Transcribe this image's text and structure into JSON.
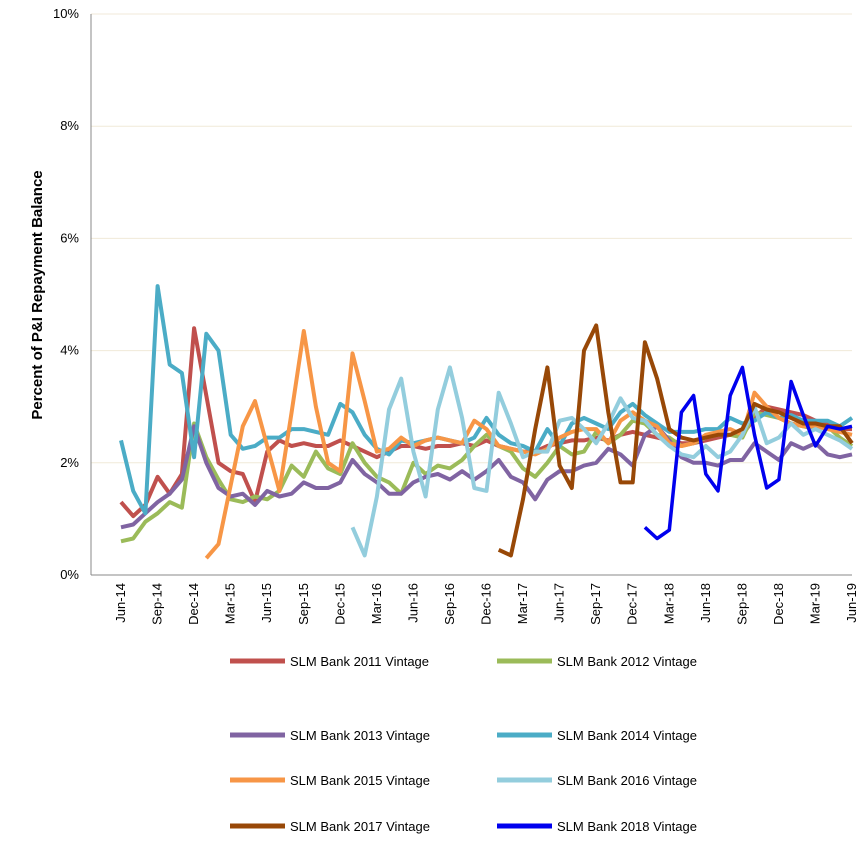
{
  "chart_data": {
    "type": "line",
    "y_label": "Percent of P&I Repayment  Balance",
    "categories": [
      "Jun-14",
      null,
      null,
      "Sep-14",
      null,
      null,
      "Dec-14",
      null,
      null,
      "Mar-15",
      null,
      null,
      "Jun-15",
      null,
      null,
      "Sep-15",
      null,
      null,
      "Dec-15",
      null,
      null,
      "Mar-16",
      null,
      null,
      "Jun-16",
      null,
      null,
      "Sep-16",
      null,
      null,
      "Dec-16",
      null,
      null,
      "Mar-17",
      null,
      null,
      "Jun-17",
      null,
      null,
      "Sep-17",
      null,
      null,
      "Dec-17",
      null,
      null,
      "Mar-18",
      null,
      null,
      "Jun-18",
      null,
      null,
      "Sep-18",
      null,
      null,
      "Dec-18",
      null,
      null,
      "Mar-19",
      null,
      null,
      "Jun-19"
    ],
    "ylim": [
      0,
      10
    ],
    "yticks": [
      {
        "value": 0,
        "label": "0%"
      },
      {
        "value": 2,
        "label": "2%"
      },
      {
        "value": 4,
        "label": "4%"
      },
      {
        "value": 6,
        "label": "6%"
      },
      {
        "value": 8,
        "label": "8%"
      },
      {
        "value": 10,
        "label": "10%"
      }
    ],
    "grid": true,
    "series": [
      {
        "name": "SLM Bank 2011 Vintage",
        "color": "#c0504d",
        "values": [
          1.3,
          1.05,
          1.25,
          1.75,
          1.45,
          1.8,
          4.4,
          3.2,
          2.0,
          1.85,
          1.8,
          1.3,
          2.2,
          2.4,
          2.3,
          2.35,
          2.3,
          2.3,
          2.4,
          2.3,
          2.2,
          2.1,
          2.2,
          2.3,
          2.3,
          2.25,
          2.3,
          2.3,
          2.35,
          2.3,
          2.4,
          2.3,
          2.25,
          2.2,
          2.2,
          2.3,
          2.35,
          2.4,
          2.4,
          2.45,
          2.4,
          2.5,
          2.55,
          2.5,
          2.45,
          2.4,
          2.35,
          2.35,
          2.4,
          2.45,
          2.5,
          2.5,
          2.8,
          3.0,
          2.95,
          2.9,
          2.85,
          2.75,
          2.7,
          2.6,
          2.6
        ]
      },
      {
        "name": "SLM Bank 2012 Vintage",
        "color": "#9bbb59",
        "values": [
          0.6,
          0.65,
          0.95,
          1.1,
          1.3,
          1.2,
          2.7,
          2.1,
          1.7,
          1.35,
          1.3,
          1.4,
          1.35,
          1.5,
          1.95,
          1.75,
          2.2,
          1.9,
          1.8,
          2.35,
          2.0,
          1.75,
          1.65,
          1.45,
          2.0,
          1.8,
          1.95,
          1.9,
          2.05,
          2.3,
          2.5,
          2.3,
          2.2,
          1.9,
          1.75,
          2.0,
          2.3,
          2.15,
          2.2,
          2.55,
          2.35,
          2.5,
          2.75,
          2.7,
          2.5,
          2.45,
          2.3,
          2.35,
          2.45,
          2.5,
          2.5,
          2.45,
          2.9,
          2.85,
          2.8,
          2.7,
          2.65,
          2.6,
          2.65,
          2.45,
          2.3
        ]
      },
      {
        "name": "SLM Bank 2013 Vintage",
        "color": "#8064a2",
        "values": [
          0.85,
          0.9,
          1.1,
          1.3,
          1.45,
          1.7,
          2.65,
          2.0,
          1.55,
          1.4,
          1.45,
          1.25,
          1.5,
          1.4,
          1.45,
          1.65,
          1.55,
          1.55,
          1.65,
          2.05,
          1.8,
          1.65,
          1.45,
          1.45,
          1.65,
          1.75,
          1.8,
          1.7,
          1.85,
          1.7,
          1.85,
          2.05,
          1.75,
          1.65,
          1.35,
          1.7,
          1.85,
          1.85,
          1.95,
          2.0,
          2.25,
          2.15,
          1.95,
          2.5,
          2.65,
          2.4,
          2.1,
          2.0,
          2.0,
          1.95,
          2.05,
          2.05,
          2.35,
          2.2,
          2.05,
          2.35,
          2.25,
          2.35,
          2.15,
          2.1,
          2.15
        ]
      },
      {
        "name": "SLM Bank 2014 Vintage",
        "color": "#4bacc6",
        "values": [
          2.4,
          1.5,
          1.1,
          5.15,
          3.75,
          3.6,
          2.1,
          4.3,
          4.0,
          2.5,
          2.25,
          2.3,
          2.45,
          2.45,
          2.6,
          2.6,
          2.55,
          2.5,
          3.05,
          2.9,
          2.5,
          2.25,
          2.15,
          2.4,
          2.35,
          2.4,
          2.45,
          2.4,
          2.35,
          2.45,
          2.8,
          2.5,
          2.35,
          2.3,
          2.2,
          2.6,
          2.3,
          2.7,
          2.8,
          2.7,
          2.6,
          2.9,
          3.05,
          2.85,
          2.7,
          2.55,
          2.55,
          2.55,
          2.6,
          2.6,
          2.8,
          2.7,
          2.75,
          2.9,
          2.8,
          2.85,
          2.75,
          2.75,
          2.75,
          2.65,
          2.8
        ]
      },
      {
        "name": "SLM Bank 2015 Vintage",
        "color": "#f79646",
        "values": [
          null,
          null,
          null,
          null,
          null,
          null,
          null,
          0.3,
          0.55,
          1.6,
          2.65,
          3.1,
          2.3,
          1.5,
          2.9,
          4.35,
          3.0,
          2.0,
          1.85,
          3.95,
          3.1,
          2.2,
          2.25,
          2.45,
          2.3,
          2.4,
          2.45,
          2.4,
          2.35,
          2.75,
          2.6,
          2.3,
          2.25,
          2.2,
          2.15,
          2.25,
          2.45,
          2.55,
          2.6,
          2.6,
          2.35,
          2.75,
          2.9,
          2.75,
          2.65,
          2.35,
          2.3,
          2.35,
          2.5,
          2.55,
          2.6,
          2.5,
          3.25,
          3.0,
          2.8,
          2.7,
          2.65,
          2.65,
          2.6,
          2.55,
          2.5
        ]
      },
      {
        "name": "SLM Bank 2016 Vintage",
        "color": "#93cddd",
        "values": [
          null,
          null,
          null,
          null,
          null,
          null,
          null,
          null,
          null,
          null,
          null,
          null,
          null,
          null,
          null,
          null,
          null,
          null,
          null,
          0.85,
          0.35,
          1.4,
          2.95,
          3.5,
          2.2,
          1.4,
          2.95,
          3.7,
          2.8,
          1.55,
          1.5,
          3.25,
          2.7,
          2.1,
          2.2,
          2.2,
          2.75,
          2.8,
          2.6,
          2.35,
          2.7,
          3.15,
          2.8,
          2.75,
          2.5,
          2.3,
          2.15,
          2.1,
          2.3,
          2.1,
          2.2,
          2.5,
          3.0,
          2.35,
          2.45,
          2.7,
          2.5,
          2.6,
          2.5,
          2.4,
          2.25
        ]
      },
      {
        "name": "SLM Bank 2017 Vintage",
        "color": "#984807",
        "values": [
          null,
          null,
          null,
          null,
          null,
          null,
          null,
          null,
          null,
          null,
          null,
          null,
          null,
          null,
          null,
          null,
          null,
          null,
          null,
          null,
          null,
          null,
          null,
          null,
          null,
          null,
          null,
          null,
          null,
          null,
          null,
          0.45,
          0.35,
          1.35,
          2.6,
          3.7,
          1.95,
          1.55,
          4.0,
          4.45,
          2.9,
          1.65,
          1.65,
          4.15,
          3.5,
          2.6,
          2.45,
          2.4,
          2.45,
          2.5,
          2.5,
          2.6,
          3.05,
          2.95,
          2.9,
          2.8,
          2.7,
          2.7,
          2.65,
          2.65,
          2.35
        ]
      },
      {
        "name": "SLM Bank 2018 Vintage",
        "color": "#0000ee",
        "values": [
          null,
          null,
          null,
          null,
          null,
          null,
          null,
          null,
          null,
          null,
          null,
          null,
          null,
          null,
          null,
          null,
          null,
          null,
          null,
          null,
          null,
          null,
          null,
          null,
          null,
          null,
          null,
          null,
          null,
          null,
          null,
          null,
          null,
          null,
          null,
          null,
          null,
          null,
          null,
          null,
          null,
          null,
          null,
          0.85,
          0.65,
          0.8,
          2.9,
          3.2,
          1.8,
          1.5,
          3.2,
          3.7,
          2.5,
          1.55,
          1.7,
          3.45,
          2.85,
          2.3,
          2.65,
          2.6,
          2.65
        ]
      }
    ]
  }
}
